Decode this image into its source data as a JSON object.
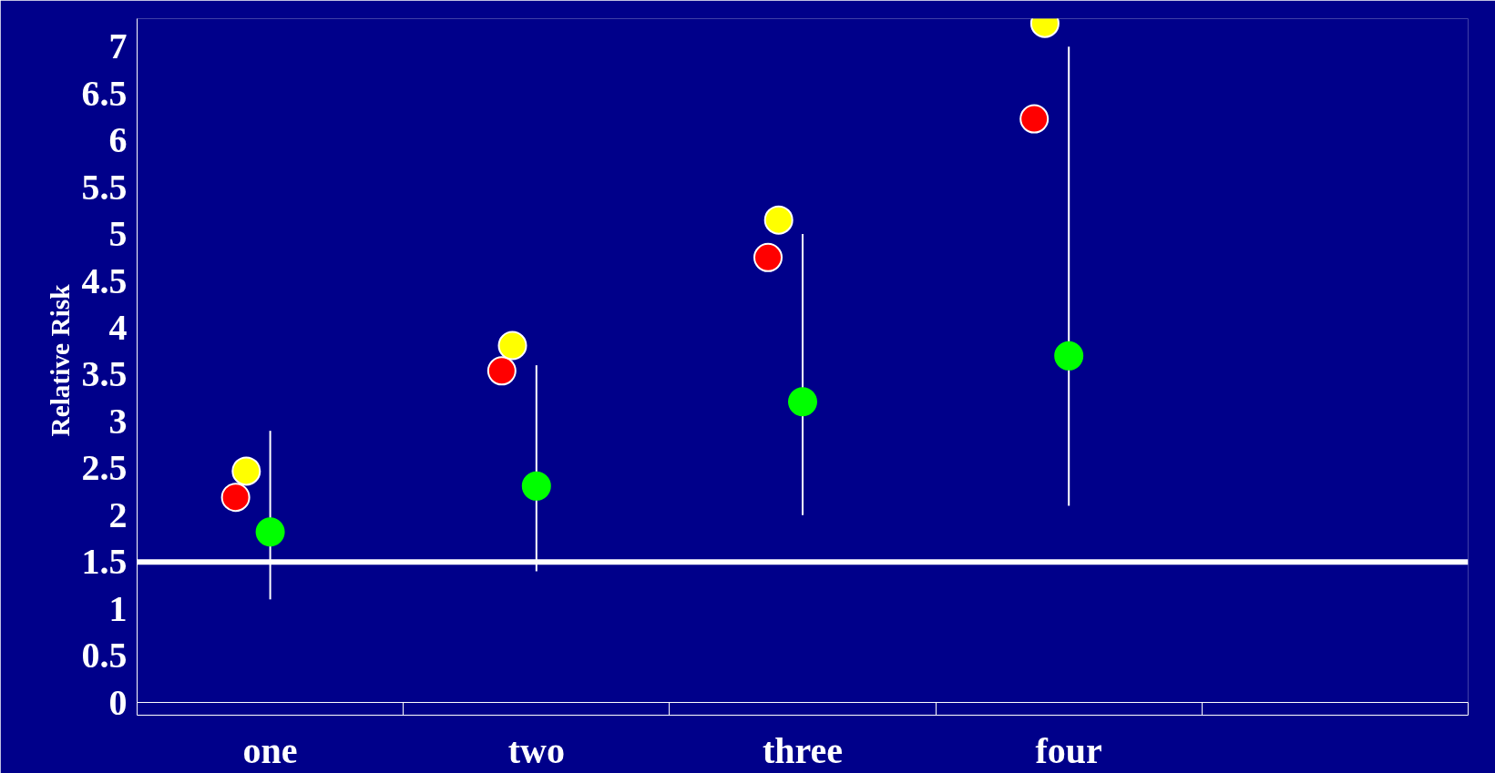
{
  "chart_data": {
    "type": "scatter",
    "ylabel": "Relative Risk",
    "categories": [
      "one",
      "two",
      "three",
      "four",
      null
    ],
    "series": [
      {
        "color": "#ff0000",
        "values": [
          2.19,
          3.54,
          4.75,
          6.23,
          null
        ]
      },
      {
        "color": "#ffff00",
        "values": [
          2.47,
          3.81,
          5.15,
          7.25,
          null
        ]
      },
      {
        "color": "#00ff00",
        "values": [
          1.82,
          2.31,
          3.21,
          3.7,
          null
        ],
        "errors": [
          [
            1.1,
            2.9
          ],
          [
            1.4,
            3.6
          ],
          [
            2.0,
            5.0
          ],
          [
            2.1,
            7.0
          ],
          null
        ]
      }
    ],
    "ylim": [
      0,
      7.3
    ],
    "yticks": [
      0,
      0.5,
      1,
      1.5,
      2,
      2.5,
      3,
      3.5,
      4,
      4.5,
      5,
      5.5,
      6,
      6.5,
      7
    ],
    "ref_lines": [
      {
        "axis": "y",
        "value": 1.5,
        "color": "#ffffff"
      }
    ],
    "grid": false,
    "marker": "circle"
  }
}
